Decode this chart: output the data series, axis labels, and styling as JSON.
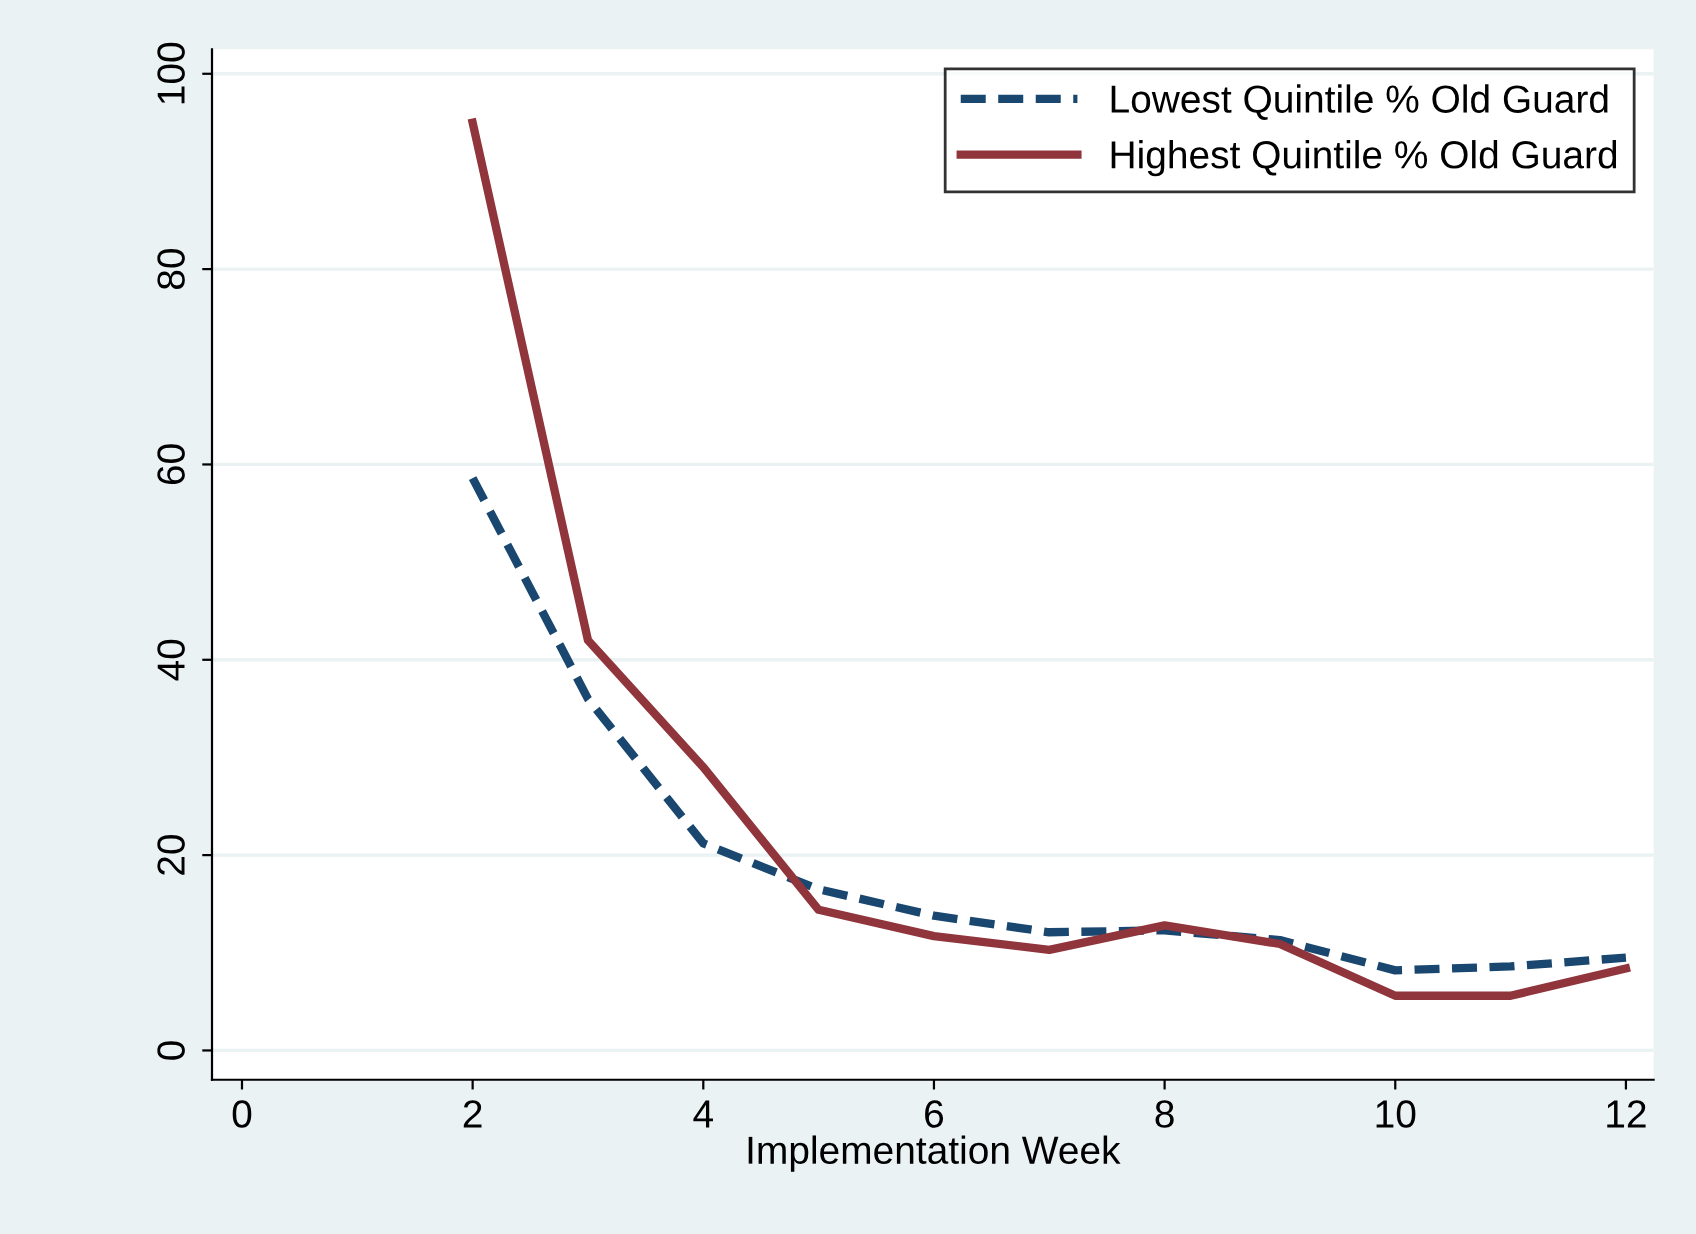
{
  "chart_data": {
    "type": "line",
    "xlabel": "Implementation Week",
    "x": [
      2,
      3,
      4,
      5,
      6,
      7,
      8,
      9,
      10,
      11,
      12
    ],
    "series": [
      {
        "name": "Lowest Quintile % Old Guard",
        "color": "#1a476f",
        "line_style": "dashed",
        "values": [
          58.6,
          36,
          21.2,
          16.5,
          13.8,
          12.1,
          12.3,
          11.3,
          8.2,
          8.6,
          9.5
        ]
      },
      {
        "name": "Highest Quintile % Old Guard",
        "color": "#90353b",
        "line_style": "solid",
        "values": [
          95,
          42,
          29,
          14.4,
          11.7,
          10.3,
          12.8,
          10.9,
          5.6,
          5.6,
          8.4
        ]
      }
    ],
    "xlim": [
      -0.26,
      12.24
    ],
    "ylim": [
      -3,
      102.5
    ],
    "xticks": [
      0,
      2,
      4,
      6,
      8,
      10,
      12
    ],
    "yticks": [
      0,
      20,
      40,
      60,
      80,
      100
    ],
    "grid": "y",
    "legend": "top right",
    "marker": "none"
  }
}
